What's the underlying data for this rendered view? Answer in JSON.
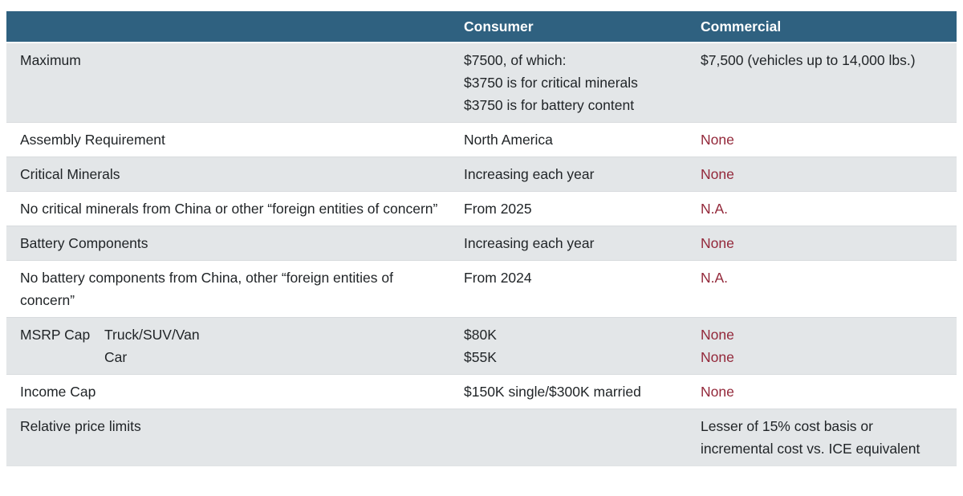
{
  "chart_data": {
    "type": "table",
    "columns": [
      "",
      "Consumer",
      "Commercial"
    ],
    "rows": [
      [
        "Maximum",
        "$7500, of which: $3750 is for critical minerals $3750 is for battery content",
        "$7,500 (vehicles up to 14,000 lbs.)"
      ],
      [
        "Assembly Requirement",
        "North America",
        "None"
      ],
      [
        "Critical Minerals",
        "Increasing each year",
        "None"
      ],
      [
        "No critical minerals from China or other “foreign entities of concern”",
        "From 2025",
        "N.A."
      ],
      [
        "Battery Components",
        "Increasing each year",
        "None"
      ],
      [
        "No battery components from China, other “foreign entities of concern”",
        "From 2024",
        "N.A."
      ],
      [
        "MSRP Cap (Truck/SUV/Van; Car)",
        "$80K; $55K",
        "None; None"
      ],
      [
        "Income Cap",
        "$150K single/$300K married",
        "None"
      ],
      [
        "Relative price limits",
        "",
        "Lesser of 15% cost basis or incremental cost vs. ICE equivalent"
      ]
    ],
    "layout": "alternating row shading, dark blue header, red text for None/N.A. values"
  },
  "table": {
    "header": {
      "consumer": "Consumer",
      "commercial": "Commercial"
    },
    "rows": [
      {
        "label": "Maximum",
        "sublabels": [],
        "consumer": [
          "$7500, of which:",
          "$3750 is for critical minerals",
          "$3750 is for battery content"
        ],
        "commercial": [
          "$7,500 (vehicles up to 14,000 lbs.)"
        ],
        "commercial_style": "default",
        "shaded": true
      },
      {
        "label": "Assembly Requirement",
        "sublabels": [],
        "consumer": [
          "North America"
        ],
        "commercial": [
          "None"
        ],
        "commercial_style": "red",
        "shaded": false
      },
      {
        "label": "Critical Minerals",
        "sublabels": [],
        "consumer": [
          "Increasing each year"
        ],
        "commercial": [
          "None"
        ],
        "commercial_style": "red",
        "shaded": true
      },
      {
        "label": "No critical minerals from China or other “foreign entities of concern”",
        "sublabels": [],
        "consumer": [
          "From 2025"
        ],
        "commercial": [
          "N.A."
        ],
        "commercial_style": "red",
        "shaded": false
      },
      {
        "label": "Battery Components",
        "sublabels": [],
        "consumer": [
          "Increasing each year"
        ],
        "commercial": [
          "None"
        ],
        "commercial_style": "red",
        "shaded": true
      },
      {
        "label": "No battery components from China, other “foreign entities of concern”",
        "sublabels": [],
        "consumer": [
          "From 2024"
        ],
        "commercial": [
          "N.A."
        ],
        "commercial_style": "red",
        "shaded": false
      },
      {
        "label": "MSRP Cap",
        "sublabels": [
          "Truck/SUV/Van",
          "Car"
        ],
        "consumer": [
          "$80K",
          "$55K"
        ],
        "commercial": [
          "None",
          "None"
        ],
        "commercial_style": "red",
        "shaded": true
      },
      {
        "label": "Income Cap",
        "sublabels": [],
        "consumer": [
          "$150K single/$300K married"
        ],
        "commercial": [
          "None"
        ],
        "commercial_style": "red",
        "shaded": false
      },
      {
        "label": "Relative price limits",
        "sublabels": [],
        "consumer": [],
        "commercial": [
          "Lesser of 15% cost basis or",
          "incremental cost vs. ICE equivalent"
        ],
        "commercial_style": "default",
        "shaded": true
      }
    ],
    "colors": {
      "header_bg": "#2f6180",
      "header_text": "#ffffff",
      "shaded_row_bg": "#e3e6e8",
      "body_text": "#1f2326",
      "accent_red": "#93283a"
    }
  }
}
